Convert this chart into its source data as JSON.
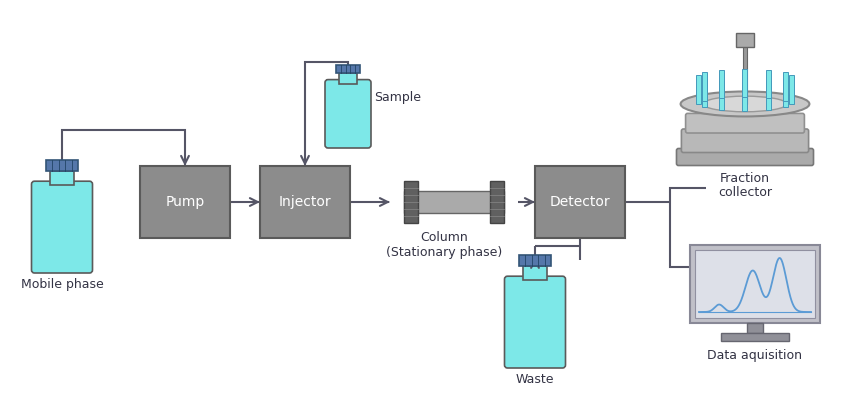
{
  "bg_color": "#ffffff",
  "box_color": "#8c8c8c",
  "box_edge_color": "#5a5a5a",
  "bottle_fill": "#7de8e8",
  "bottle_cap_fill": "#5577aa",
  "bottle_edge": "#4a6a88",
  "arrow_color": "#555566",
  "line_color": "#555566",
  "text_color": "#333344",
  "pump_label": "Pump",
  "injector_label": "Injector",
  "detector_label": "Detector",
  "mobile_phase_label": "Mobile phase",
  "sample_label": "Sample",
  "waste_label": "Waste",
  "column_label": "Column\n(Stationary phase)",
  "fraction_label": "Fraction\ncollector",
  "data_label": "Data aquisition",
  "figsize": [
    8.44,
    4.0
  ],
  "dpi": 100
}
